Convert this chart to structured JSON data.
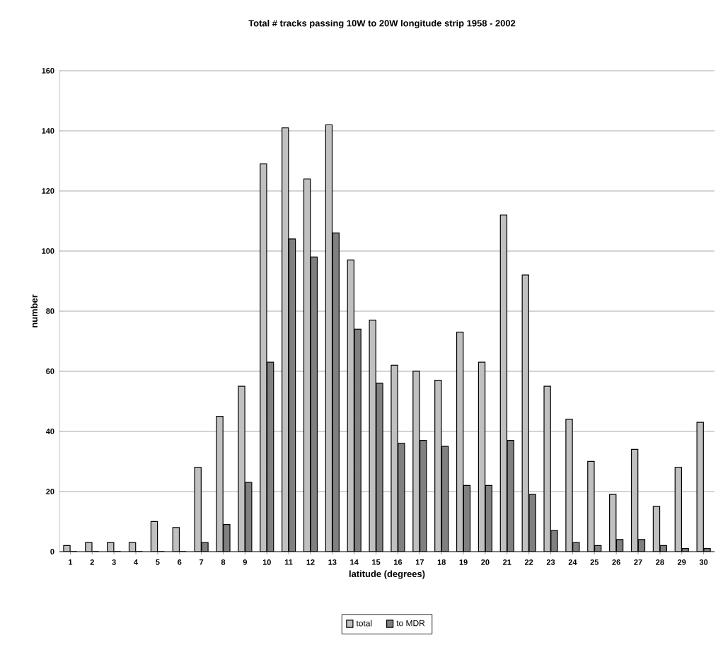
{
  "chart_data": {
    "type": "bar",
    "title": "Total # tracks passing 10W to 20W longitude strip 1958 - 2002",
    "xlabel": "latitude (degrees)",
    "ylabel": "number",
    "categories": [
      "1",
      "2",
      "3",
      "4",
      "5",
      "6",
      "7",
      "8",
      "9",
      "10",
      "11",
      "12",
      "13",
      "14",
      "15",
      "16",
      "17",
      "18",
      "19",
      "20",
      "21",
      "22",
      "23",
      "24",
      "25",
      "26",
      "27",
      "28",
      "29",
      "30"
    ],
    "series": [
      {
        "name": "total",
        "color": "#c0c0c0",
        "values": [
          2,
          3,
          3,
          3,
          10,
          8,
          28,
          45,
          55,
          129,
          141,
          124,
          142,
          97,
          77,
          62,
          60,
          57,
          73,
          63,
          112,
          92,
          55,
          44,
          30,
          19,
          34,
          15,
          28,
          43
        ]
      },
      {
        "name": "to MDR",
        "color": "#808080",
        "values": [
          0,
          0,
          0,
          0,
          0,
          0,
          3,
          9,
          23,
          63,
          104,
          98,
          106,
          74,
          56,
          36,
          37,
          35,
          22,
          22,
          37,
          19,
          7,
          3,
          2,
          4,
          4,
          2,
          1,
          1
        ]
      }
    ],
    "ylim": [
      0,
      160
    ],
    "yticks": [
      0,
      20,
      40,
      60,
      80,
      100,
      120,
      140,
      160
    ],
    "grid": "y",
    "legend": "bottom"
  }
}
